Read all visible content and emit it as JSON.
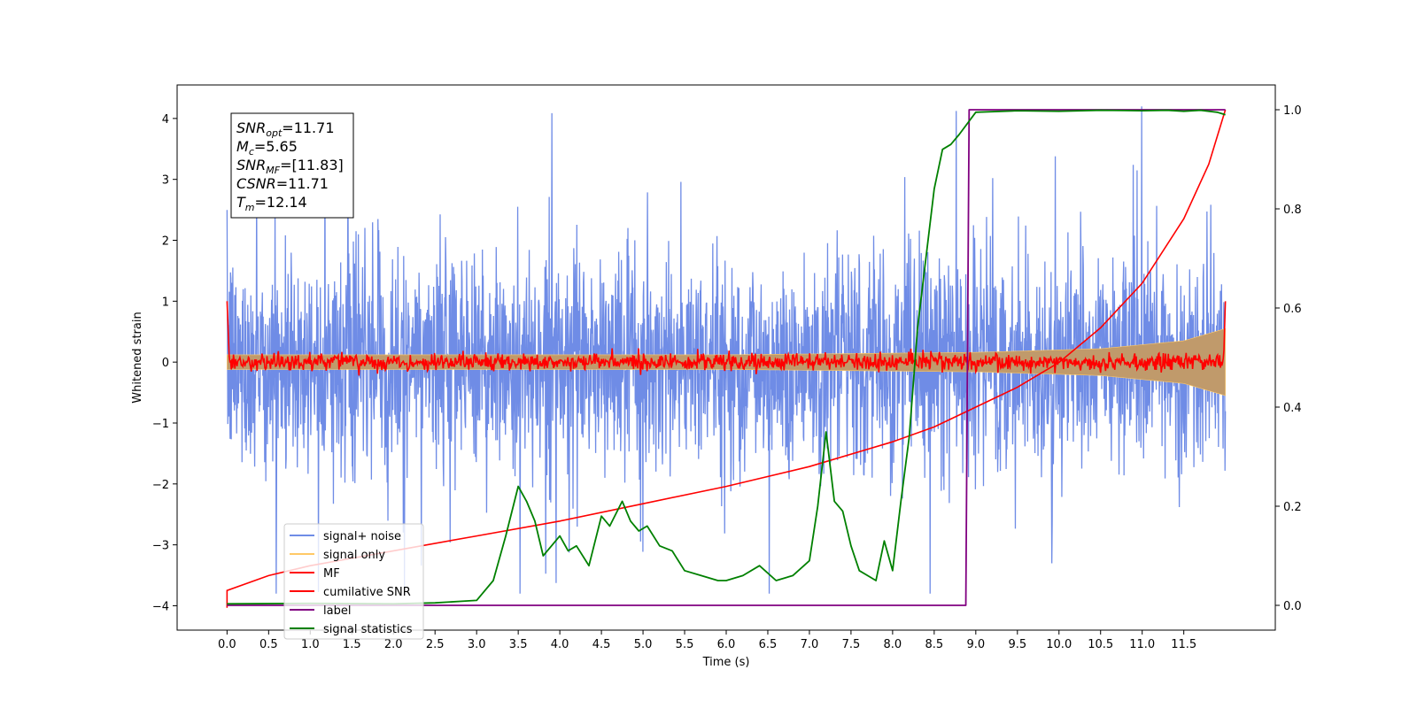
{
  "chart_data": {
    "type": "line",
    "xlabel": "Time (s)",
    "ylabel": "Whitened strain",
    "xlim": [
      -0.6,
      12.6
    ],
    "ylim": [
      -4.4,
      4.55
    ],
    "ylim_right": [
      -0.05,
      1.05
    ],
    "xticks": [
      "0.0",
      "0.5",
      "1.0",
      "1.5",
      "2.0",
      "2.5",
      "3.0",
      "3.5",
      "4.0",
      "4.5",
      "5.0",
      "5.5",
      "6.0",
      "6.5",
      "7.0",
      "7.5",
      "8.0",
      "8.5",
      "9.0",
      "9.5",
      "10.0",
      "10.5",
      "11.0",
      "11.5"
    ],
    "yticks": [
      "4",
      "3",
      "2",
      "1",
      "0",
      "−1",
      "−2",
      "−3",
      "−4"
    ],
    "yticks_right": [
      "1.0",
      "0.8",
      "0.6",
      "0.4",
      "0.2",
      "0.0"
    ],
    "legend_position": "lower-left",
    "annotation": {
      "lines": [
        {
          "sym": "SNR",
          "sub": "opt",
          "val": "=11.71"
        },
        {
          "sym": "M",
          "sub": "c",
          "val": "=5.65"
        },
        {
          "sym": "SNR",
          "sub": "MF",
          "val": "=[11.83]"
        },
        {
          "sym": "CSNR",
          "sub": "",
          "val": "=11.71"
        },
        {
          "sym": "T",
          "sub": "m",
          "val": "=12.14"
        }
      ]
    },
    "series": [
      {
        "name": "signal+ noise",
        "color": "#6f8ce6",
        "axis": "left",
        "noise_std": 0.9,
        "spike_max": 4.2,
        "x_range": [
          0.0,
          12.0
        ]
      },
      {
        "name": "signal only",
        "color": "#ffc966",
        "axis": "left",
        "envelope": {
          "x": [
            0,
            6,
            9,
            10.5,
            11.5,
            12.0
          ],
          "amplitude": [
            0.12,
            0.12,
            0.16,
            0.22,
            0.35,
            0.55
          ]
        }
      },
      {
        "name": "MF",
        "color": "#ff0000",
        "axis": "left",
        "noise_std": 0.07,
        "x_range": [
          0.0,
          12.0
        ]
      },
      {
        "name": "cumilative SNR",
        "color": "#ff0000",
        "axis": "right",
        "x": [
          0,
          0.5,
          1,
          2,
          3,
          4,
          5,
          6,
          7,
          8,
          8.5,
          9,
          9.5,
          10,
          10.5,
          11,
          11.5,
          11.8,
          12.0
        ],
        "y": [
          0.03,
          0.06,
          0.08,
          0.11,
          0.14,
          0.17,
          0.205,
          0.24,
          0.28,
          0.33,
          0.36,
          0.4,
          0.44,
          0.49,
          0.56,
          0.65,
          0.78,
          0.89,
          1.0
        ]
      },
      {
        "name": "label",
        "color": "#800080",
        "axis": "right",
        "x": [
          0.0,
          8.88,
          8.92,
          12.0
        ],
        "y": [
          0.0,
          0.0,
          1.0,
          1.0
        ]
      },
      {
        "name": "signal statistics",
        "color": "#008000",
        "axis": "right",
        "x": [
          0.0,
          1.0,
          2.0,
          2.5,
          2.8,
          3.0,
          3.2,
          3.35,
          3.5,
          3.6,
          3.7,
          3.8,
          3.9,
          4.0,
          4.1,
          4.2,
          4.35,
          4.5,
          4.6,
          4.75,
          4.85,
          4.95,
          5.05,
          5.2,
          5.35,
          5.5,
          5.7,
          5.9,
          6.0,
          6.2,
          6.4,
          6.6,
          6.8,
          7.0,
          7.1,
          7.2,
          7.3,
          7.4,
          7.5,
          7.6,
          7.7,
          7.8,
          7.9,
          8.0,
          8.1,
          8.2,
          8.3,
          8.4,
          8.5,
          8.6,
          8.7,
          8.8,
          9.0,
          9.5,
          10.0,
          10.5,
          11.0,
          11.3,
          11.5,
          11.7,
          11.9,
          12.0
        ],
        "y": [
          0.003,
          0.004,
          0.003,
          0.005,
          0.008,
          0.01,
          0.05,
          0.14,
          0.24,
          0.21,
          0.17,
          0.1,
          0.12,
          0.14,
          0.11,
          0.12,
          0.08,
          0.18,
          0.16,
          0.21,
          0.17,
          0.15,
          0.16,
          0.12,
          0.11,
          0.07,
          0.06,
          0.05,
          0.05,
          0.06,
          0.08,
          0.05,
          0.06,
          0.09,
          0.2,
          0.35,
          0.21,
          0.19,
          0.12,
          0.07,
          0.06,
          0.05,
          0.13,
          0.07,
          0.21,
          0.34,
          0.56,
          0.7,
          0.84,
          0.92,
          0.93,
          0.95,
          0.995,
          0.998,
          0.997,
          0.999,
          0.998,
          0.999,
          0.997,
          0.999,
          0.995,
          0.99
        ]
      }
    ]
  }
}
